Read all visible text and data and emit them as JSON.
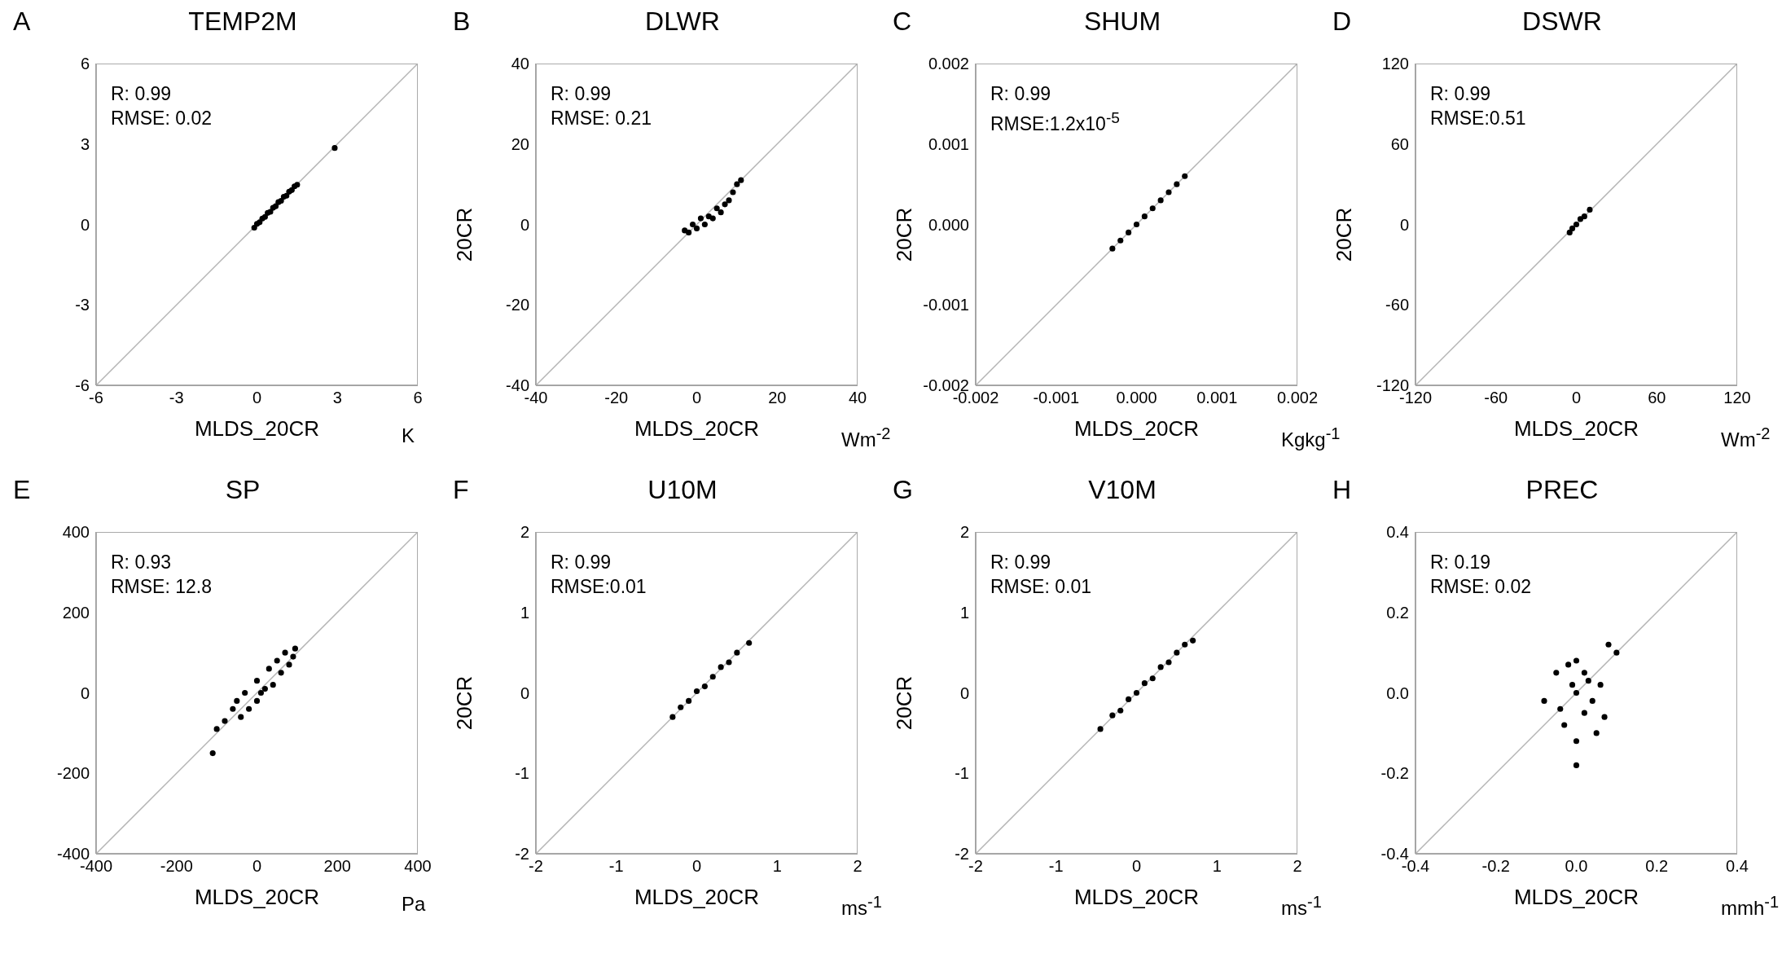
{
  "chart_data": [
    {
      "type": "scatter",
      "title": "TEMP2M",
      "xlabel": "MLDS_20CR",
      "annotations": [
        "A",
        "R: 0.99",
        "RMSE: 0.02",
        "K"
      ],
      "marker": "circle",
      "xlim": [
        -6,
        6
      ],
      "ylim": [
        -6,
        6
      ],
      "xticks": [
        -6,
        -3,
        0,
        3,
        6
      ],
      "yticks": [
        -6,
        -3,
        0,
        3,
        6
      ],
      "series": [
        {
          "type": "scatter",
          "color": "#000000",
          "x": [
            -0.1,
            0,
            0.1,
            0.2,
            0.3,
            0.4,
            0.5,
            0.6,
            0.7,
            0.8,
            0.9,
            1.0,
            1.1,
            1.2,
            1.3,
            1.4,
            1.5,
            2.9
          ],
          "values": [
            -0.12,
            0.02,
            0.08,
            0.22,
            0.28,
            0.43,
            0.47,
            0.62,
            0.68,
            0.83,
            0.88,
            1.03,
            1.07,
            1.22,
            1.28,
            1.42,
            1.48,
            2.85
          ]
        },
        {
          "type": "line",
          "marker": "none",
          "color": "#b4b4b4",
          "x": [
            -6,
            6
          ],
          "values": [
            -6,
            6
          ]
        }
      ]
    },
    {
      "type": "scatter",
      "title": "DLWR",
      "xlabel": "MLDS_20CR",
      "ylabel": "20CR",
      "annotations": [
        "B",
        "R: 0.99",
        "RMSE: 0.21",
        "Wm$^{-2}$"
      ],
      "marker": "circle",
      "xlim": [
        -40,
        40
      ],
      "ylim": [
        -40,
        40
      ],
      "xticks": [
        -40,
        -20,
        0,
        20,
        40
      ],
      "yticks": [
        -40,
        -20,
        0,
        20,
        40
      ],
      "series": [
        {
          "type": "scatter",
          "color": "#000000",
          "x": [
            -3,
            -2,
            -1,
            0,
            1,
            2,
            3,
            4,
            5,
            6,
            7,
            8,
            9,
            10,
            11
          ],
          "values": [
            -1.5,
            -2,
            0,
            -1,
            1.5,
            0,
            2,
            1.5,
            4,
            3,
            5,
            6,
            8,
            10,
            11
          ]
        },
        {
          "type": "line",
          "marker": "none",
          "color": "#b4b4b4",
          "x": [
            -40,
            40
          ],
          "values": [
            -40,
            40
          ]
        }
      ]
    },
    {
      "type": "scatter",
      "title": "SHUM",
      "xlabel": "MLDS_20CR",
      "ylabel": "20CR",
      "annotations": [
        "C",
        "R: 0.99",
        "RMSE:1.2x10$^{-5}$",
        "Kgkg$^{-1}$"
      ],
      "marker": "circle",
      "xlim": [
        -0.002,
        0.002
      ],
      "ylim": [
        -0.002,
        0.002
      ],
      "xticks": [
        -0.002,
        -0.001,
        {
          "value": 0,
          "label": "0.000"
        },
        0.001,
        0.002
      ],
      "yticks": [
        -0.002,
        -0.001,
        {
          "value": 0,
          "label": "0.000"
        },
        0.001,
        0.002
      ],
      "series": [
        {
          "type": "scatter",
          "color": "#000000",
          "x": [
            -0.0003,
            -0.0002,
            -0.0001,
            0,
            0.0001,
            0.0002,
            0.0003,
            0.0004,
            0.0005,
            0.0006
          ],
          "values": [
            -0.0003,
            -0.0002,
            -0.0001,
            0,
            0.0001,
            0.0002,
            0.0003,
            0.0004,
            0.0005,
            0.0006
          ]
        },
        {
          "type": "line",
          "marker": "none",
          "color": "#b4b4b4",
          "x": [
            -0.002,
            0.002
          ],
          "values": [
            -0.002,
            0.002
          ]
        }
      ]
    },
    {
      "type": "scatter",
      "title": "DSWR",
      "xlabel": "MLDS_20CR",
      "ylabel": "20CR",
      "annotations": [
        "D",
        "R: 0.99",
        "RMSE:0.51",
        "Wm$^{-2}$"
      ],
      "marker": "circle",
      "xlim": [
        -120,
        120
      ],
      "ylim": [
        -120,
        120
      ],
      "xticks": [
        -120,
        -60,
        0,
        60,
        120
      ],
      "yticks": [
        -120,
        -60,
        0,
        60,
        120
      ],
      "series": [
        {
          "type": "scatter",
          "color": "#000000",
          "x": [
            -5,
            -3,
            0,
            3,
            6,
            10
          ],
          "values": [
            -6,
            -3,
            0,
            4,
            6,
            11
          ]
        },
        {
          "type": "line",
          "marker": "none",
          "color": "#b4b4b4",
          "x": [
            -120,
            120
          ],
          "values": [
            -120,
            120
          ]
        }
      ]
    },
    {
      "type": "scatter",
      "title": "SP",
      "xlabel": "MLDS_20CR",
      "annotations": [
        "E",
        "R: 0.93",
        "RMSE: 12.8",
        "Pa"
      ],
      "marker": "circle",
      "xlim": [
        -400,
        400
      ],
      "ylim": [
        -400,
        400
      ],
      "xticks": [
        -400,
        -200,
        0,
        200,
        400
      ],
      "yticks": [
        -400,
        -200,
        0,
        200,
        400
      ],
      "series": [
        {
          "type": "scatter",
          "color": "#000000",
          "x": [
            -110,
            -100,
            -80,
            -60,
            -40,
            -30,
            -20,
            0,
            0,
            20,
            30,
            40,
            60,
            70,
            80,
            95,
            90,
            -50,
            10,
            50
          ],
          "values": [
            -150,
            -90,
            -70,
            -40,
            -60,
            0,
            -40,
            -20,
            30,
            10,
            60,
            20,
            50,
            100,
            70,
            110,
            90,
            -20,
            0,
            80
          ]
        },
        {
          "type": "line",
          "marker": "none",
          "color": "#b4b4b4",
          "x": [
            -400,
            400
          ],
          "values": [
            -400,
            400
          ]
        }
      ]
    },
    {
      "type": "scatter",
      "title": "U10M",
      "xlabel": "MLDS_20CR",
      "ylabel": "20CR",
      "annotations": [
        "F",
        "R: 0.99",
        "RMSE:0.01",
        "ms$^{-1}$"
      ],
      "marker": "circle",
      "xlim": [
        -2,
        2
      ],
      "ylim": [
        -2,
        2
      ],
      "xticks": [
        -2,
        -1,
        0,
        1,
        2
      ],
      "yticks": [
        -2,
        -1,
        0,
        1,
        2
      ],
      "series": [
        {
          "type": "scatter",
          "color": "#000000",
          "x": [
            -0.3,
            -0.2,
            -0.1,
            0,
            0.1,
            0.2,
            0.3,
            0.4,
            0.5,
            0.65
          ],
          "values": [
            -0.3,
            -0.18,
            -0.1,
            0.02,
            0.08,
            0.2,
            0.32,
            0.38,
            0.5,
            0.62
          ]
        },
        {
          "type": "line",
          "marker": "none",
          "color": "#b4b4b4",
          "x": [
            -2,
            2
          ],
          "values": [
            -2,
            2
          ]
        }
      ]
    },
    {
      "type": "scatter",
      "title": "V10M",
      "xlabel": "MLDS_20CR",
      "ylabel": "20CR",
      "annotations": [
        "G",
        "R: 0.99",
        "RMSE: 0.01",
        "ms$^{-1}$"
      ],
      "marker": "circle",
      "xlim": [
        -2,
        2
      ],
      "ylim": [
        -2,
        2
      ],
      "xticks": [
        -2,
        -1,
        0,
        1,
        2
      ],
      "yticks": [
        -2,
        -1,
        0,
        1,
        2
      ],
      "series": [
        {
          "type": "scatter",
          "color": "#000000",
          "x": [
            -0.45,
            -0.3,
            -0.2,
            -0.1,
            0,
            0.1,
            0.2,
            0.3,
            0.4,
            0.5,
            0.6,
            0.7
          ],
          "values": [
            -0.45,
            -0.28,
            -0.22,
            -0.08,
            0,
            0.12,
            0.18,
            0.32,
            0.38,
            0.5,
            0.6,
            0.65
          ]
        },
        {
          "type": "line",
          "marker": "none",
          "color": "#b4b4b4",
          "x": [
            -2,
            2
          ],
          "values": [
            -2,
            2
          ]
        }
      ]
    },
    {
      "type": "scatter",
      "title": "PREC",
      "xlabel": "MLDS_20CR",
      "annotations": [
        "H",
        "R: 0.19",
        "RMSE: 0.02",
        "mmh$^{-1}$"
      ],
      "marker": "circle",
      "xlim": [
        -0.4,
        0.4
      ],
      "ylim": [
        -0.4,
        0.4
      ],
      "xticks": [
        -0.4,
        -0.2,
        {
          "value": 0,
          "label": "0.0"
        },
        0.2,
        0.4
      ],
      "yticks": [
        -0.4,
        -0.2,
        {
          "value": 0,
          "label": "0.0"
        },
        0.2,
        0.4
      ],
      "series": [
        {
          "type": "scatter",
          "color": "#000000",
          "x": [
            -0.08,
            -0.05,
            -0.03,
            -0.02,
            0,
            0,
            0,
            0.02,
            0.03,
            0.05,
            0.06,
            0.08,
            0.1,
            0,
            -0.04,
            0.04,
            0.02,
            -0.01,
            0.07
          ],
          "values": [
            -0.02,
            0.05,
            -0.08,
            0.07,
            0,
            -0.12,
            0.08,
            -0.05,
            0.03,
            -0.1,
            0.02,
            0.12,
            0.1,
            -0.18,
            -0.04,
            -0.02,
            0.05,
            0.02,
            -0.06
          ]
        },
        {
          "type": "line",
          "marker": "none",
          "color": "#b4b4b4",
          "x": [
            -0.4,
            0.4
          ],
          "values": [
            -0.4,
            0.4
          ]
        }
      ]
    }
  ]
}
